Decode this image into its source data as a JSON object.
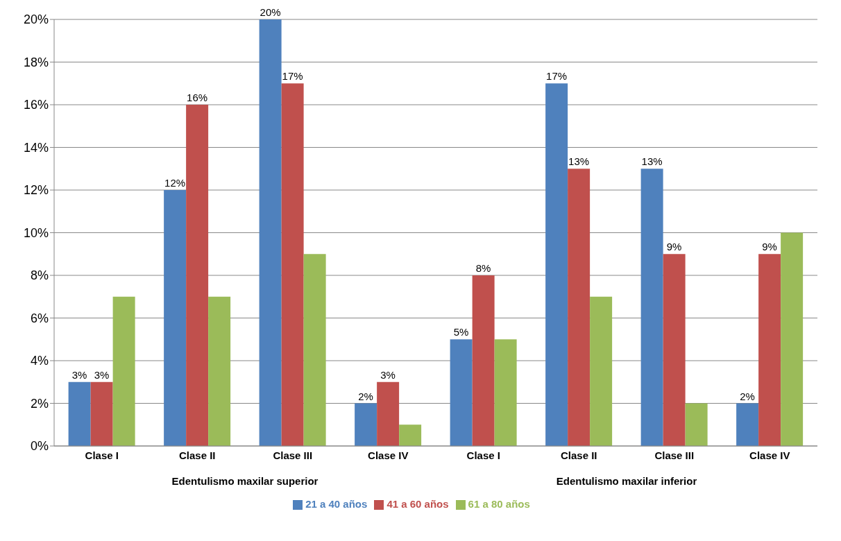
{
  "chart_data": {
    "type": "bar",
    "categories": [
      "Clase I",
      "Clase II",
      "Clase III",
      "Clase IV",
      "Clase I",
      "Clase II",
      "Clase III",
      "Clase IV"
    ],
    "annotations": [
      "Edentulismo maxilar superior",
      "Edentulismo maxilar inferior"
    ],
    "series": [
      {
        "name": "21 a 40 años",
        "color": "#4f81bd",
        "values": [
          3,
          12,
          20,
          2,
          5,
          17,
          13,
          2
        ],
        "value_labels": [
          "3%",
          "12%",
          "20%",
          "2%",
          "5%",
          "17%",
          "13%",
          "2%"
        ]
      },
      {
        "name": "41 a 60 años",
        "color": "#c0504d",
        "values": [
          3,
          16,
          17,
          3,
          8,
          13,
          9,
          9
        ],
        "value_labels": [
          "3%",
          "16%",
          "17%",
          "3%",
          "8%",
          "13%",
          "9%",
          "9%"
        ]
      },
      {
        "name": "61 a 80 años",
        "color": "#9bbb59",
        "values": [
          7,
          7,
          9,
          1,
          5,
          7,
          2,
          10
        ],
        "value_labels": [
          null,
          null,
          null,
          null,
          null,
          null,
          null,
          null
        ]
      }
    ],
    "ylim": [
      0,
      20
    ],
    "yticks": [
      {
        "value": 0,
        "label": "0%"
      },
      {
        "value": 2,
        "label": "2%"
      },
      {
        "value": 4,
        "label": "4%"
      },
      {
        "value": 6,
        "label": "6%"
      },
      {
        "value": 8,
        "label": "8%"
      },
      {
        "value": 10,
        "label": "10%"
      },
      {
        "value": 12,
        "label": "12%"
      },
      {
        "value": 14,
        "label": "14%"
      },
      {
        "value": 16,
        "label": "16%"
      },
      {
        "value": 18,
        "label": "18%"
      },
      {
        "value": 20,
        "label": "20%"
      }
    ],
    "grid": "y",
    "legend": "bottom"
  }
}
